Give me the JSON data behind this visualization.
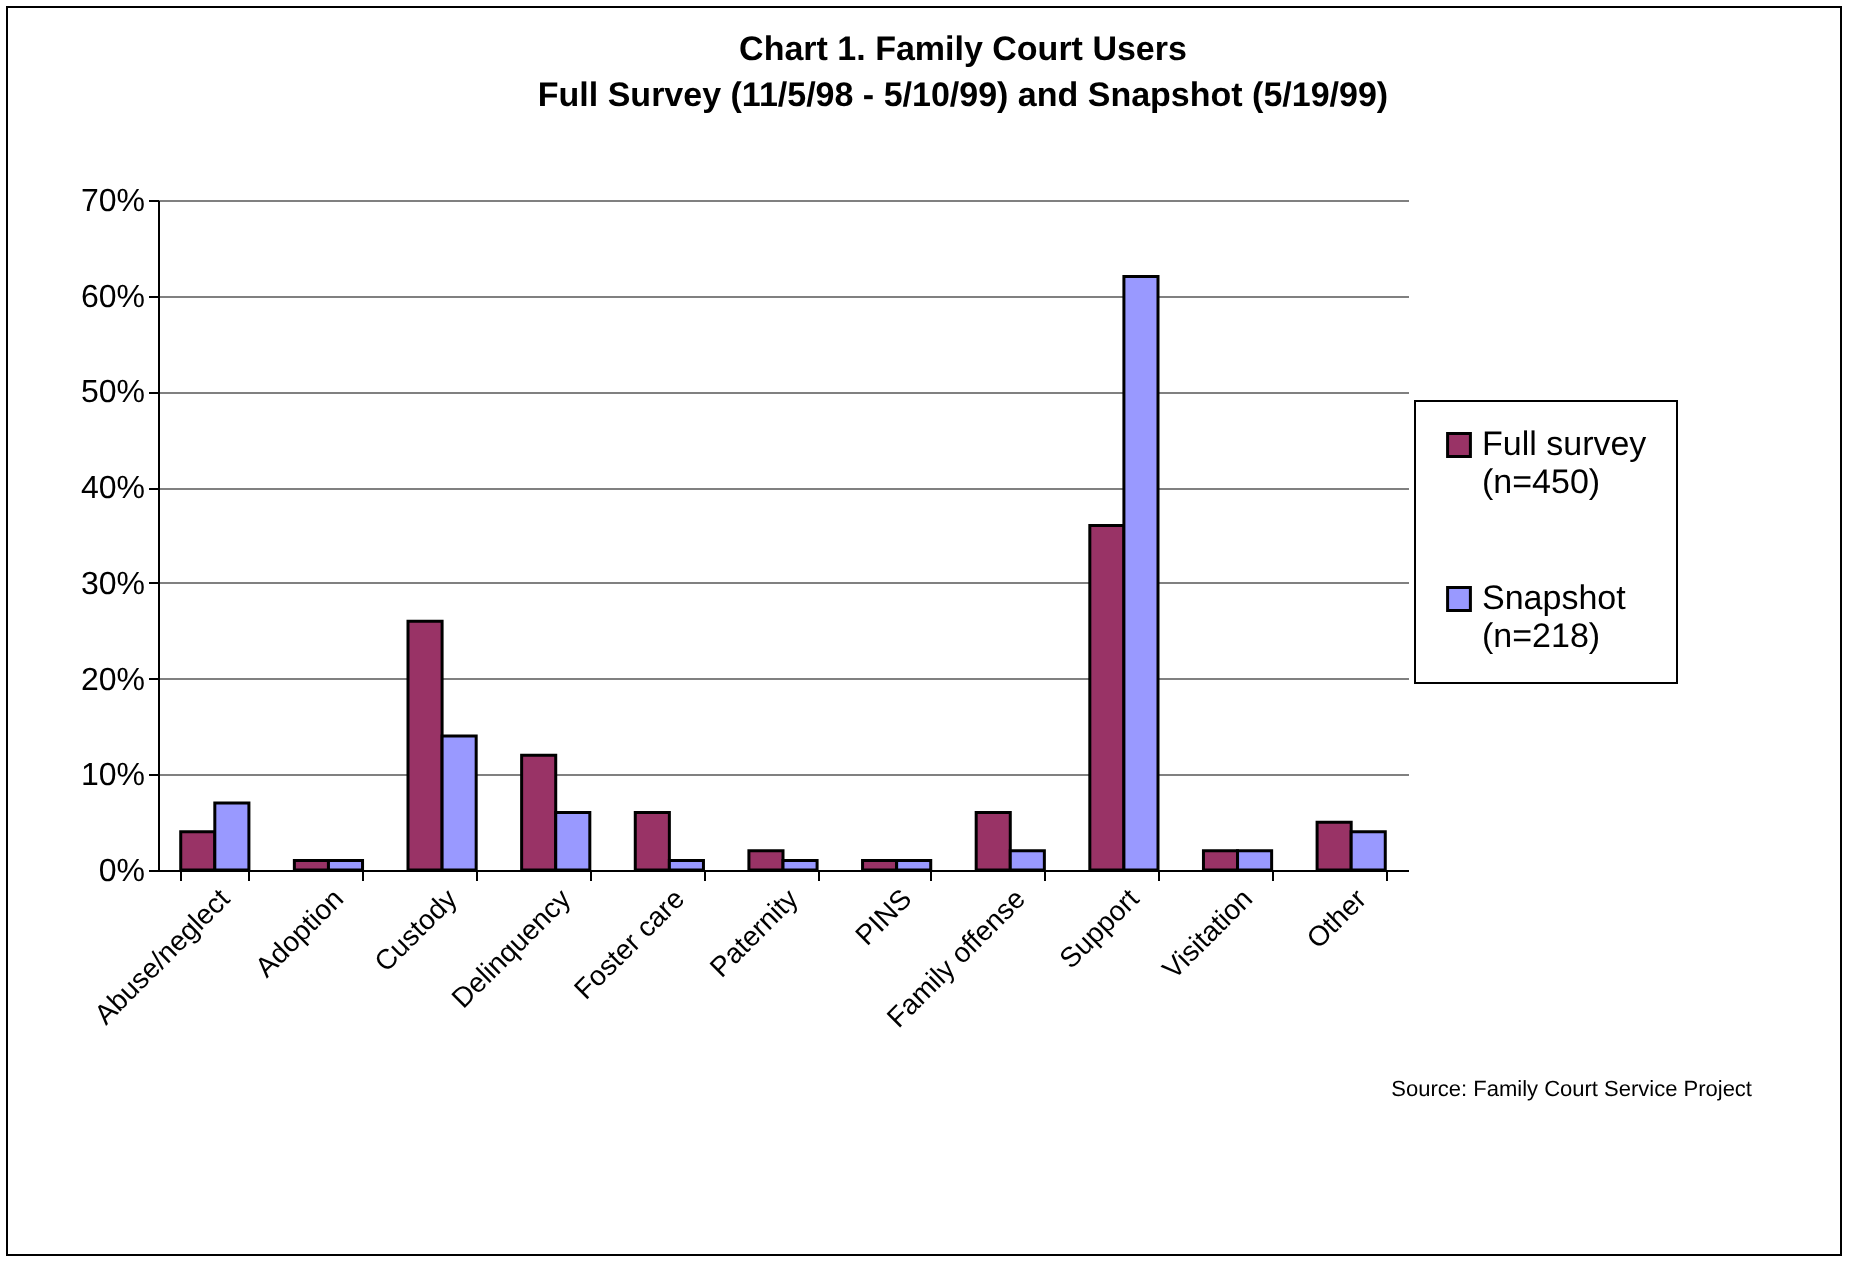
{
  "chart_data": {
    "type": "bar",
    "title": "Chart 1. Family Court Users",
    "subtitle": "Full Survey (11/5/98 - 5/10/99) and Snapshot (5/19/99)",
    "categories": [
      "Abuse/neglect",
      "Adoption",
      "Custody",
      "Delinquency",
      "Foster care",
      "Paternity",
      "PINS",
      "Family offense",
      "Support",
      "Visitation",
      "Other"
    ],
    "series": [
      {
        "name": "Full survey (n=450)",
        "color": "#993366",
        "values": [
          4,
          1,
          26,
          12,
          6,
          2,
          1,
          6,
          36,
          2,
          5
        ]
      },
      {
        "name": "Snapshot (n=218)",
        "color": "#9999ff",
        "values": [
          7,
          1,
          14,
          6,
          1,
          1,
          1,
          2,
          62,
          2,
          4
        ]
      }
    ],
    "ylim": [
      0,
      70
    ],
    "yticks": [
      {
        "value": 0,
        "label": "0%"
      },
      {
        "value": 10,
        "label": "10%"
      },
      {
        "value": 20,
        "label": "20%"
      },
      {
        "value": 30,
        "label": "30%"
      },
      {
        "value": 40,
        "label": "40%"
      },
      {
        "value": 50,
        "label": "50%"
      },
      {
        "value": 60,
        "label": "60%"
      },
      {
        "value": 70,
        "label": "70%"
      }
    ],
    "grid": "y",
    "legend": "right",
    "annotations": [
      "Source: Family Court Service Project"
    ]
  }
}
